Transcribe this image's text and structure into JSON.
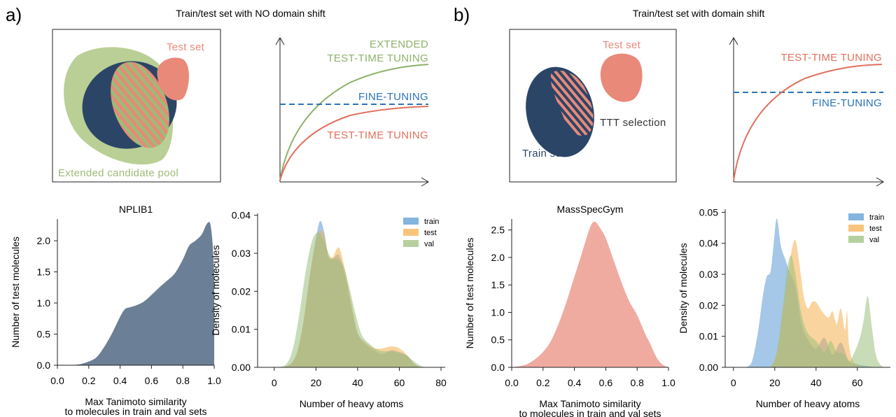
{
  "panels": {
    "a": {
      "letter": "a)",
      "title": "Train/test set with NO domain shift",
      "venn": {
        "test_set_label": "Test set",
        "pool_label": "Extended candidate pool",
        "colors": {
          "pool": "#b9cf96",
          "train": "#2b4566",
          "test": "#e8897a",
          "pool_text": "#9dbb78",
          "test_text": "#e8897a"
        }
      },
      "curves": {
        "extended_label_1": "EXTENDED",
        "extended_label_2": "TEST-TIME TUNING",
        "finetune_label": "FINE-TUNING",
        "ttt_label": "TEST-TIME TUNING",
        "colors": {
          "extended": "#8fb06a",
          "finetune": "#2a73b8",
          "ttt": "#e0705e"
        }
      }
    },
    "b": {
      "letter": "b)",
      "title": "Train/test set with domain shift",
      "venn": {
        "test_set_label": "Test set",
        "train_set_label": "Train set",
        "selection_label": "TTT selection",
        "colors": {
          "train": "#2b4566",
          "test": "#e8897a",
          "train_text": "#2b4566",
          "test_text": "#e8897a"
        }
      },
      "curves": {
        "ttt_label": "TEST-TIME TUNING",
        "finetune_label": "FINE-TUNING",
        "colors": {
          "finetune": "#2a73b8",
          "ttt": "#e0705e"
        }
      }
    }
  },
  "chart_data": [
    {
      "id": "nplib1",
      "type": "area",
      "title": "NPLIB1",
      "xlabel": [
        "Max Tanimoto similarity",
        "to molecules in train and val sets"
      ],
      "ylabel": "Number of test molecules",
      "xlim": [
        0.0,
        1.0
      ],
      "ylim": [
        0.0,
        2.35
      ],
      "xticks": [
        "0.0",
        "0.2",
        "0.4",
        "0.6",
        "0.8",
        "1.0"
      ],
      "yticks": [
        "0.0",
        "0.5",
        "1.0",
        "1.5",
        "2.0"
      ],
      "color": "#6b7f96",
      "x": [
        0.0,
        0.1,
        0.15,
        0.2,
        0.25,
        0.3,
        0.35,
        0.4,
        0.43,
        0.46,
        0.5,
        0.55,
        0.6,
        0.65,
        0.7,
        0.75,
        0.8,
        0.84,
        0.88,
        0.92,
        0.95,
        0.97,
        0.98,
        0.99,
        1.0
      ],
      "y": [
        0.0,
        0.005,
        0.02,
        0.06,
        0.13,
        0.3,
        0.52,
        0.78,
        0.9,
        0.93,
        0.96,
        1.02,
        1.13,
        1.25,
        1.36,
        1.48,
        1.7,
        1.92,
        2.0,
        2.1,
        2.26,
        2.3,
        2.2,
        1.95,
        1.45
      ]
    },
    {
      "id": "nplib1_atoms",
      "type": "area",
      "title": "",
      "xlabel": "Number of heavy atoms",
      "ylabel": "Density of molecules",
      "xlim": [
        -8,
        82
      ],
      "ylim": [
        0.0,
        0.0405
      ],
      "xticks": [
        "0",
        "20",
        "40",
        "60",
        "80"
      ],
      "yticks": [
        "0.00",
        "0.01",
        "0.02",
        "0.03",
        "0.04"
      ],
      "legend_position": "top-right",
      "series": [
        {
          "name": "train",
          "color": "#5b9bd5",
          "x": [
            4,
            8,
            11,
            14,
            17,
            20,
            22,
            24,
            26,
            28,
            31,
            34,
            37,
            40,
            44,
            48,
            52,
            56,
            60,
            64,
            67,
            70
          ],
          "y": [
            0.0,
            0.001,
            0.004,
            0.012,
            0.024,
            0.034,
            0.0385,
            0.0355,
            0.029,
            0.0285,
            0.0295,
            0.024,
            0.016,
            0.009,
            0.006,
            0.0045,
            0.0035,
            0.0045,
            0.004,
            0.003,
            0.001,
            0.0
          ]
        },
        {
          "name": "test",
          "color": "#f5b04f",
          "x": [
            4,
            8,
            11,
            14,
            17,
            20,
            22,
            24,
            26,
            28,
            31,
            34,
            37,
            40,
            44,
            48,
            52,
            56,
            60,
            64,
            67,
            70
          ],
          "y": [
            0.0,
            0.001,
            0.004,
            0.012,
            0.024,
            0.033,
            0.036,
            0.0345,
            0.0295,
            0.029,
            0.0315,
            0.0255,
            0.017,
            0.009,
            0.0065,
            0.005,
            0.005,
            0.0055,
            0.005,
            0.003,
            0.001,
            0.0
          ]
        },
        {
          "name": "val",
          "color": "#9cc07e",
          "x": [
            2,
            6,
            9,
            12,
            15,
            18,
            21,
            24,
            27,
            30,
            33,
            36,
            39,
            42,
            46,
            50,
            54,
            58,
            62,
            66,
            69,
            72
          ],
          "y": [
            0.0,
            0.001,
            0.005,
            0.014,
            0.025,
            0.033,
            0.0355,
            0.033,
            0.029,
            0.0285,
            0.027,
            0.021,
            0.014,
            0.0085,
            0.006,
            0.0045,
            0.0042,
            0.004,
            0.0035,
            0.002,
            0.0008,
            0.0
          ]
        }
      ]
    },
    {
      "id": "massspecgym",
      "type": "area",
      "title": "MassSpecGym",
      "xlabel": [
        "Max Tanimoto similarity",
        "to molecules in train and val sets"
      ],
      "ylabel": "Number of test molecules",
      "xlim": [
        0.0,
        1.0
      ],
      "ylim": [
        0.0,
        2.7
      ],
      "xticks": [
        "0.0",
        "0.2",
        "0.4",
        "0.6",
        "0.8",
        "1.0"
      ],
      "yticks": [
        "0.0",
        "0.5",
        "1.0",
        "1.5",
        "2.0",
        "2.5"
      ],
      "color": "#f0aba0",
      "x": [
        0.0,
        0.05,
        0.1,
        0.15,
        0.2,
        0.25,
        0.3,
        0.35,
        0.4,
        0.45,
        0.5,
        0.53,
        0.56,
        0.6,
        0.65,
        0.7,
        0.75,
        0.8,
        0.85,
        0.88,
        0.92,
        0.95,
        0.98,
        1.0
      ],
      "y": [
        0.0,
        0.02,
        0.06,
        0.15,
        0.28,
        0.48,
        0.8,
        1.2,
        1.65,
        2.1,
        2.55,
        2.65,
        2.55,
        2.35,
        1.95,
        1.55,
        1.2,
        0.95,
        0.62,
        0.45,
        0.2,
        0.08,
        0.02,
        0.0
      ]
    },
    {
      "id": "massspecgym_atoms",
      "type": "area",
      "title": "",
      "xlabel": "Number of heavy atoms",
      "ylabel": "Density of molecules",
      "xlim": [
        -4,
        76
      ],
      "ylim": [
        0.0,
        0.051
      ],
      "xticks": [
        "0",
        "20",
        "40",
        "60"
      ],
      "yticks": [
        "0.00",
        "0.01",
        "0.02",
        "0.03",
        "0.04",
        "0.05"
      ],
      "legend_position": "top-right",
      "series": [
        {
          "name": "train",
          "color": "#5b9bd5",
          "x": [
            6,
            9,
            12,
            14,
            16,
            18,
            19.5,
            21,
            23,
            25,
            27,
            30,
            33,
            36,
            40,
            44,
            48,
            52,
            56,
            60,
            64,
            68
          ],
          "y": [
            0.0,
            0.002,
            0.012,
            0.022,
            0.029,
            0.031,
            0.04,
            0.048,
            0.039,
            0.035,
            0.031,
            0.026,
            0.014,
            0.009,
            0.006,
            0.0095,
            0.004,
            0.008,
            0.002,
            0.001,
            0.0005,
            0.0
          ]
        },
        {
          "name": "test",
          "color": "#f5b04f",
          "x": [
            16,
            19,
            22,
            24,
            26,
            28,
            30,
            32,
            34,
            36,
            38,
            40,
            43,
            46,
            48,
            50,
            52,
            54,
            55,
            56,
            58,
            62
          ],
          "y": [
            0.0,
            0.001,
            0.008,
            0.019,
            0.027,
            0.037,
            0.041,
            0.033,
            0.023,
            0.019,
            0.021,
            0.021,
            0.018,
            0.016,
            0.018,
            0.014,
            0.019,
            0.012,
            0.018,
            0.007,
            0.002,
            0.0
          ]
        },
        {
          "name": "val",
          "color": "#9cc07e",
          "x": [
            18,
            21,
            24,
            26,
            28,
            30,
            33,
            36,
            40,
            44,
            47,
            50,
            53,
            56,
            58,
            61,
            63,
            65,
            67,
            69,
            71,
            73
          ],
          "y": [
            0.0,
            0.005,
            0.02,
            0.032,
            0.036,
            0.03,
            0.017,
            0.011,
            0.0085,
            0.005,
            0.0085,
            0.005,
            0.0045,
            0.002,
            0.004,
            0.009,
            0.015,
            0.023,
            0.013,
            0.004,
            0.001,
            0.0
          ]
        }
      ]
    }
  ]
}
